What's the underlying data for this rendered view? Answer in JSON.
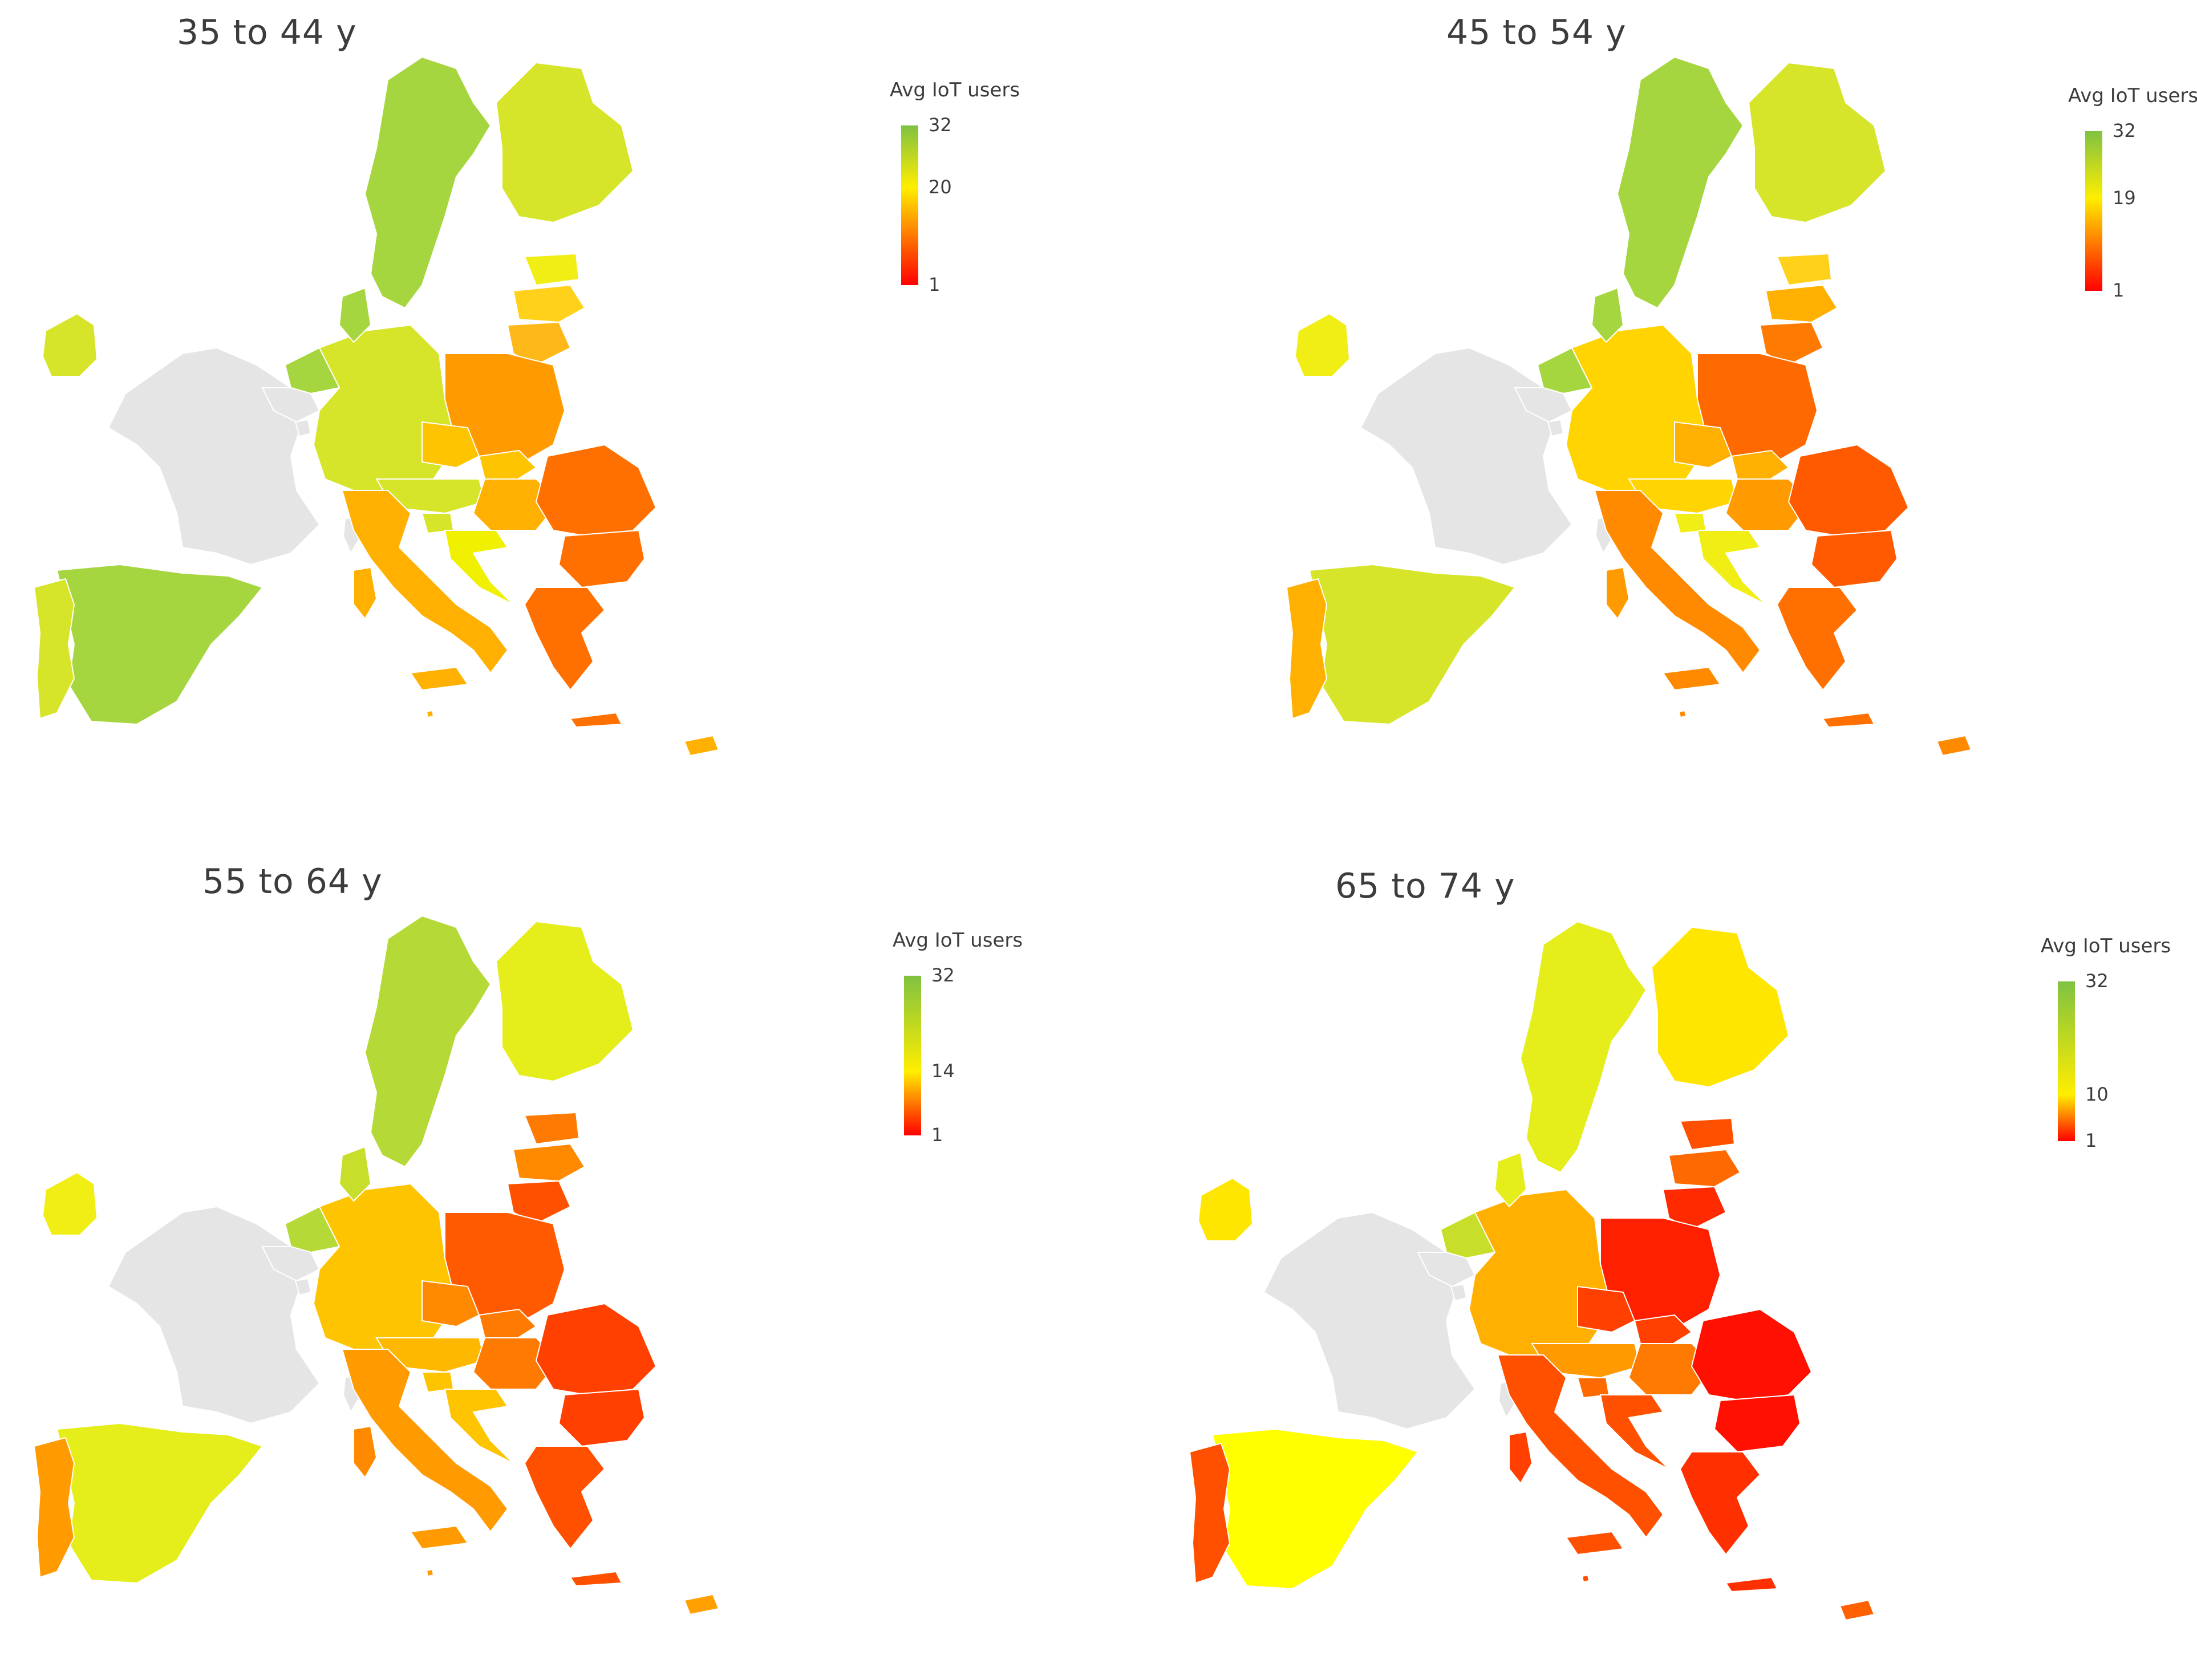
{
  "legend_title": "Avg IoT users",
  "panels": [
    {
      "title": "35 to 44 y",
      "legend": {
        "max": "32",
        "mid": "20",
        "min": "1",
        "mid_frac": 0.39
      },
      "colors": {
        "SE": "#a6d63f",
        "FI": "#d6e52a",
        "NO": "none",
        "EE": "#f0ee15",
        "LV": "#ffd11a",
        "LT": "#ffb81a",
        "DK": "#a6d63f",
        "IE": "#d6e52a",
        "UK": "none",
        "NL": "#a6d63f",
        "BE": "#e5e5e5",
        "LU": "#e5e5e5",
        "DE": "#d6e52a",
        "PL": "#ff9a00",
        "CZ": "#ffc400",
        "SK": "#ffc400",
        "AT": "#d6e52a",
        "HU": "#ffb000",
        "SI": "#d6e52a",
        "HR": "#f0f000",
        "RO": "#ff7000",
        "BG": "#ff7000",
        "GR": "#ff7000",
        "IT": "#ffb000",
        "FR": "#e5e5e5",
        "ES": "#a6d63f",
        "PT": "#d6e52a",
        "CY": "#ffb000",
        "MT": "#ffb000",
        "CORSICA": "#e5e5e5",
        "SARDINIA": "#ffb000"
      }
    },
    {
      "title": "45 to 54 y",
      "legend": {
        "max": "32",
        "mid": "19",
        "min": "1",
        "mid_frac": 0.42
      },
      "colors": {
        "SE": "#a6d63f",
        "FI": "#d6e52a",
        "NO": "none",
        "EE": "#ffd11a",
        "LV": "#ffb000",
        "LT": "#ff7a00",
        "DK": "#a6d63f",
        "IE": "#f0ee15",
        "UK": "none",
        "NL": "#a6d63f",
        "BE": "#e5e5e5",
        "LU": "#e5e5e5",
        "DE": "#ffd400",
        "PL": "#ff6a00",
        "CZ": "#ffb000",
        "SK": "#ffb000",
        "AT": "#ffd400",
        "HU": "#ff9a00",
        "SI": "#f0ee15",
        "HR": "#f0ee15",
        "RO": "#ff5a00",
        "BG": "#ff5a00",
        "GR": "#ff7000",
        "IT": "#ff8a00",
        "FR": "#e5e5e5",
        "ES": "#d6e52a",
        "PT": "#ffb000",
        "CY": "#ff8a00",
        "MT": "#ff8a00",
        "CORSICA": "#e5e5e5",
        "SARDINIA": "#ff9a00"
      }
    },
    {
      "title": "55 to 64 y",
      "legend": {
        "max": "32",
        "mid": "14",
        "min": "1",
        "mid_frac": 0.6
      },
      "colors": {
        "SE": "#b5d936",
        "FI": "#e5ee1a",
        "NO": "none",
        "EE": "#ff7a00",
        "LV": "#ff8a00",
        "LT": "#ff5000",
        "DK": "#c7df2a",
        "IE": "#f0ee15",
        "UK": "none",
        "NL": "#b5d936",
        "BE": "#e5e5e5",
        "LU": "#e5e5e5",
        "DE": "#ffc400",
        "PL": "#ff5a00",
        "CZ": "#ff8a00",
        "SK": "#ff7a00",
        "AT": "#ffb800",
        "HU": "#ff7a00",
        "SI": "#ffc400",
        "HR": "#ffc400",
        "RO": "#ff4000",
        "BG": "#ff4000",
        "GR": "#ff5000",
        "IT": "#ff9a00",
        "FR": "#e5e5e5",
        "ES": "#e5ee1a",
        "PT": "#ff9a00",
        "CY": "#ffa000",
        "MT": "#ff9a00",
        "CORSICA": "#e5e5e5",
        "SARDINIA": "#ff8a00"
      }
    },
    {
      "title": "65 to 74 y",
      "legend": {
        "max": "32",
        "mid": "10",
        "min": "1",
        "mid_frac": 0.71
      },
      "colors": {
        "SE": "#e5ee1a",
        "FI": "#ffe600",
        "NO": "none",
        "EE": "#ff5000",
        "LV": "#ff6a00",
        "LT": "#ff2a00",
        "DK": "#e5ee1a",
        "IE": "#ffe600",
        "UK": "none",
        "NL": "#c7df2a",
        "BE": "#e5e5e5",
        "LU": "#e5e5e5",
        "DE": "#ffb000",
        "PL": "#ff2000",
        "CZ": "#ff4000",
        "SK": "#ff4000",
        "AT": "#ff9a00",
        "HU": "#ff7a00",
        "SI": "#ff6a00",
        "HR": "#ff5000",
        "RO": "#ff1000",
        "BG": "#ff1000",
        "GR": "#ff3000",
        "IT": "#ff5000",
        "FR": "#e5e5e5",
        "ES": "#ffff00",
        "PT": "#ff5000",
        "CY": "#ff6000",
        "MT": "#ff5000",
        "CORSICA": "#e5e5e5",
        "SARDINIA": "#ff4000"
      }
    }
  ]
}
